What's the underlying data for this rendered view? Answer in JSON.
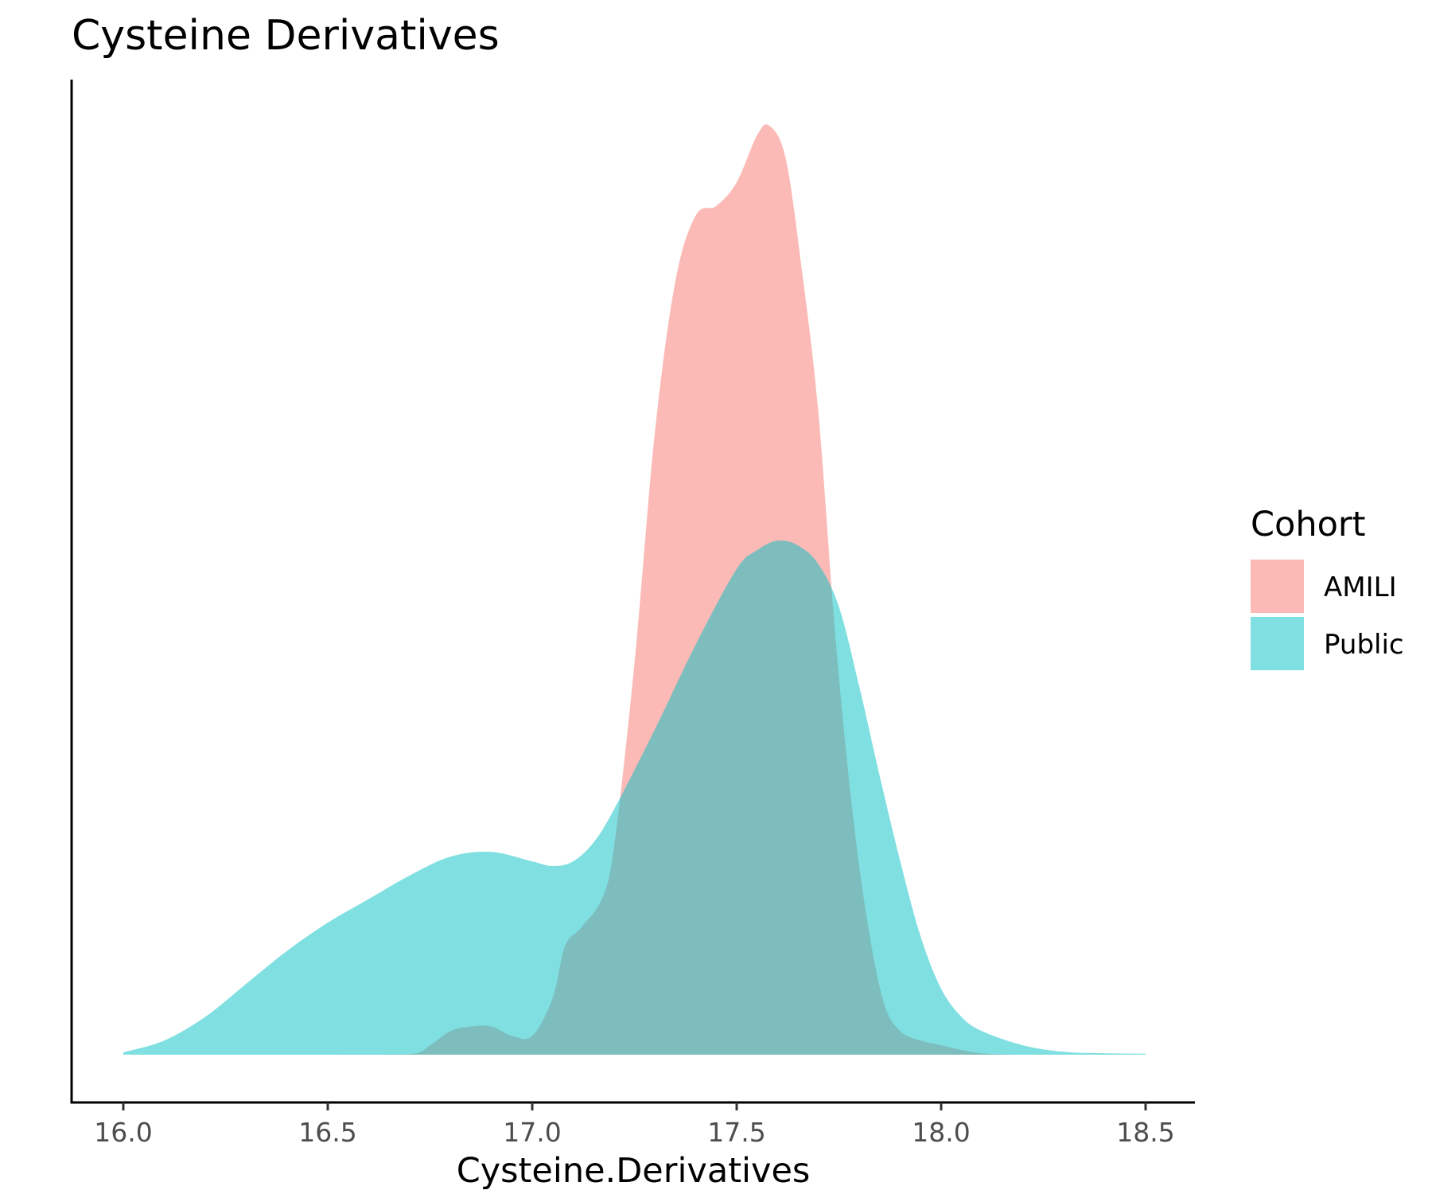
{
  "chart_data": {
    "type": "area",
    "title": "Cysteine Derivatives",
    "xlabel": "Cysteine.Derivatives",
    "ylabel": "",
    "xlim": [
      15.88,
      18.62
    ],
    "xticks": [
      "16.0",
      "16.5",
      "17.0",
      "17.5",
      "18.0",
      "18.5"
    ],
    "xtick_values": [
      16.0,
      16.5,
      17.0,
      17.5,
      18.0,
      18.5
    ],
    "yticks_shown": false,
    "grid": false,
    "legend": {
      "title": "Cohort",
      "position": "right"
    },
    "series": [
      {
        "name": "AMILI",
        "color": "#F8766D",
        "opacity": 0.5,
        "x": [
          16.0,
          16.5,
          16.7,
          16.75,
          16.8,
          16.85,
          16.9,
          16.95,
          17.0,
          17.05,
          17.08,
          17.12,
          17.17,
          17.2,
          17.25,
          17.3,
          17.35,
          17.4,
          17.45,
          17.5,
          17.55,
          17.58,
          17.62,
          17.66,
          17.7,
          17.74,
          17.78,
          17.82,
          17.86,
          17.9,
          17.95,
          18.0,
          18.05,
          18.1,
          18.2,
          18.5
        ],
        "y": [
          0.0,
          0.0,
          0.001,
          0.02,
          0.05,
          0.06,
          0.06,
          0.04,
          0.04,
          0.12,
          0.23,
          0.27,
          0.33,
          0.44,
          0.83,
          1.32,
          1.64,
          1.78,
          1.8,
          1.85,
          1.95,
          1.97,
          1.9,
          1.66,
          1.36,
          0.9,
          0.54,
          0.28,
          0.11,
          0.05,
          0.03,
          0.02,
          0.01,
          0.003,
          0.0,
          0.0
        ]
      },
      {
        "name": "Public",
        "color": "#00BFC4",
        "opacity": 0.5,
        "x": [
          16.0,
          16.1,
          16.2,
          16.3,
          16.4,
          16.5,
          16.6,
          16.7,
          16.8,
          16.9,
          17.0,
          17.05,
          17.1,
          17.15,
          17.2,
          17.3,
          17.4,
          17.5,
          17.55,
          17.6,
          17.65,
          17.7,
          17.75,
          17.8,
          17.85,
          17.9,
          17.95,
          18.0,
          18.05,
          18.1,
          18.2,
          18.3,
          18.4,
          18.5
        ],
        "y": [
          0.005,
          0.03,
          0.08,
          0.15,
          0.22,
          0.28,
          0.33,
          0.38,
          0.42,
          0.43,
          0.41,
          0.4,
          0.41,
          0.45,
          0.52,
          0.69,
          0.87,
          1.03,
          1.07,
          1.09,
          1.08,
          1.04,
          0.95,
          0.78,
          0.59,
          0.41,
          0.25,
          0.14,
          0.08,
          0.05,
          0.02,
          0.006,
          0.003,
          0.002
        ]
      }
    ]
  }
}
